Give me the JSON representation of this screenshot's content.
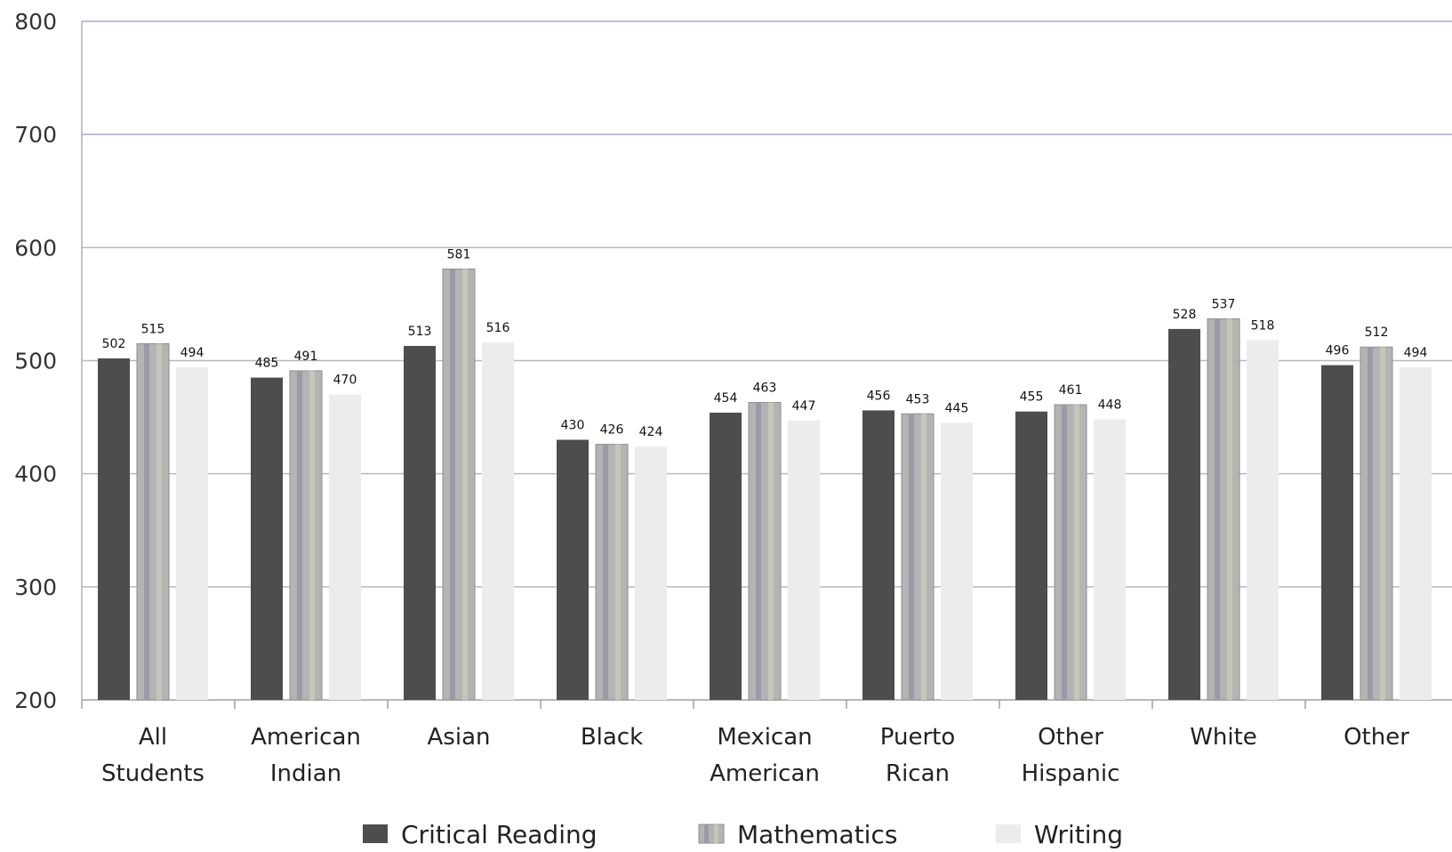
{
  "chart_data": {
    "type": "bar",
    "categories": [
      [
        "All",
        "Students"
      ],
      [
        "American",
        "Indian"
      ],
      [
        "Asian"
      ],
      [
        "Black"
      ],
      [
        "Mexican",
        "American"
      ],
      [
        "Puerto",
        "Rican"
      ],
      [
        "Other",
        "Hispanic"
      ],
      [
        "White"
      ],
      [
        "Other"
      ]
    ],
    "series": [
      {
        "name": "Critical Reading",
        "values": [
          502,
          485,
          513,
          430,
          454,
          456,
          455,
          528,
          496
        ],
        "color": "#4d4d4d"
      },
      {
        "name": "Mathematics",
        "values": [
          515,
          491,
          581,
          426,
          463,
          453,
          461,
          537,
          512
        ],
        "color": "#b4b4b4"
      },
      {
        "name": "Writing",
        "values": [
          494,
          470,
          516,
          424,
          447,
          445,
          448,
          518,
          494
        ],
        "color": "#ececec"
      }
    ],
    "yticks": [
      200,
      300,
      400,
      500,
      600,
      700,
      800
    ],
    "ylim": [
      200,
      800
    ],
    "grid": true,
    "legend_position": "bottom",
    "title": "",
    "xlabel": "",
    "ylabel": ""
  }
}
